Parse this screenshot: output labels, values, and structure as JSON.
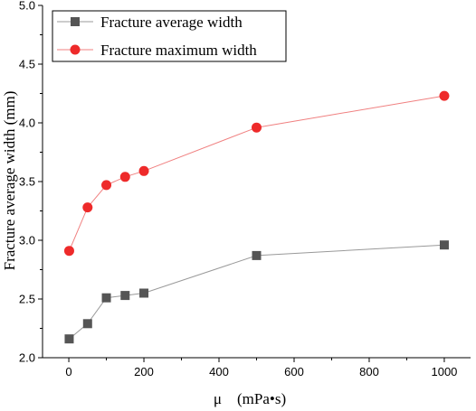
{
  "chart_data": {
    "type": "line",
    "xlabel": "μ　(mPa•s)",
    "ylabel": "Fracture average width (mm)",
    "xlim": [
      -70,
      1070
    ],
    "ylim": [
      2.0,
      5.0
    ],
    "xticks": [
      0,
      200,
      400,
      600,
      800,
      1000
    ],
    "yticks": [
      2.0,
      2.5,
      3.0,
      3.5,
      4.0,
      4.5,
      5.0
    ],
    "xtick_labels": [
      "0",
      "200",
      "400",
      "600",
      "800",
      "1000"
    ],
    "ytick_labels": [
      "2.0",
      "2.5",
      "3.0",
      "3.5",
      "4.0",
      "4.5",
      "5.0"
    ],
    "grid": false,
    "legend_position": "top-left",
    "series": [
      {
        "name": "Fracture average width",
        "marker": "square",
        "color": "#555555",
        "line_color": "#999999",
        "x": [
          1,
          50,
          100,
          150,
          200,
          500,
          1000
        ],
        "y": [
          2.16,
          2.29,
          2.51,
          2.53,
          2.55,
          2.87,
          2.96
        ]
      },
      {
        "name": "Fracture maximum width",
        "marker": "circle",
        "color": "#ee2a2a",
        "line_color": "#f08080",
        "x": [
          1,
          50,
          100,
          150,
          200,
          500,
          1000
        ],
        "y": [
          2.91,
          3.28,
          3.47,
          3.54,
          3.59,
          3.96,
          4.23
        ]
      }
    ]
  }
}
